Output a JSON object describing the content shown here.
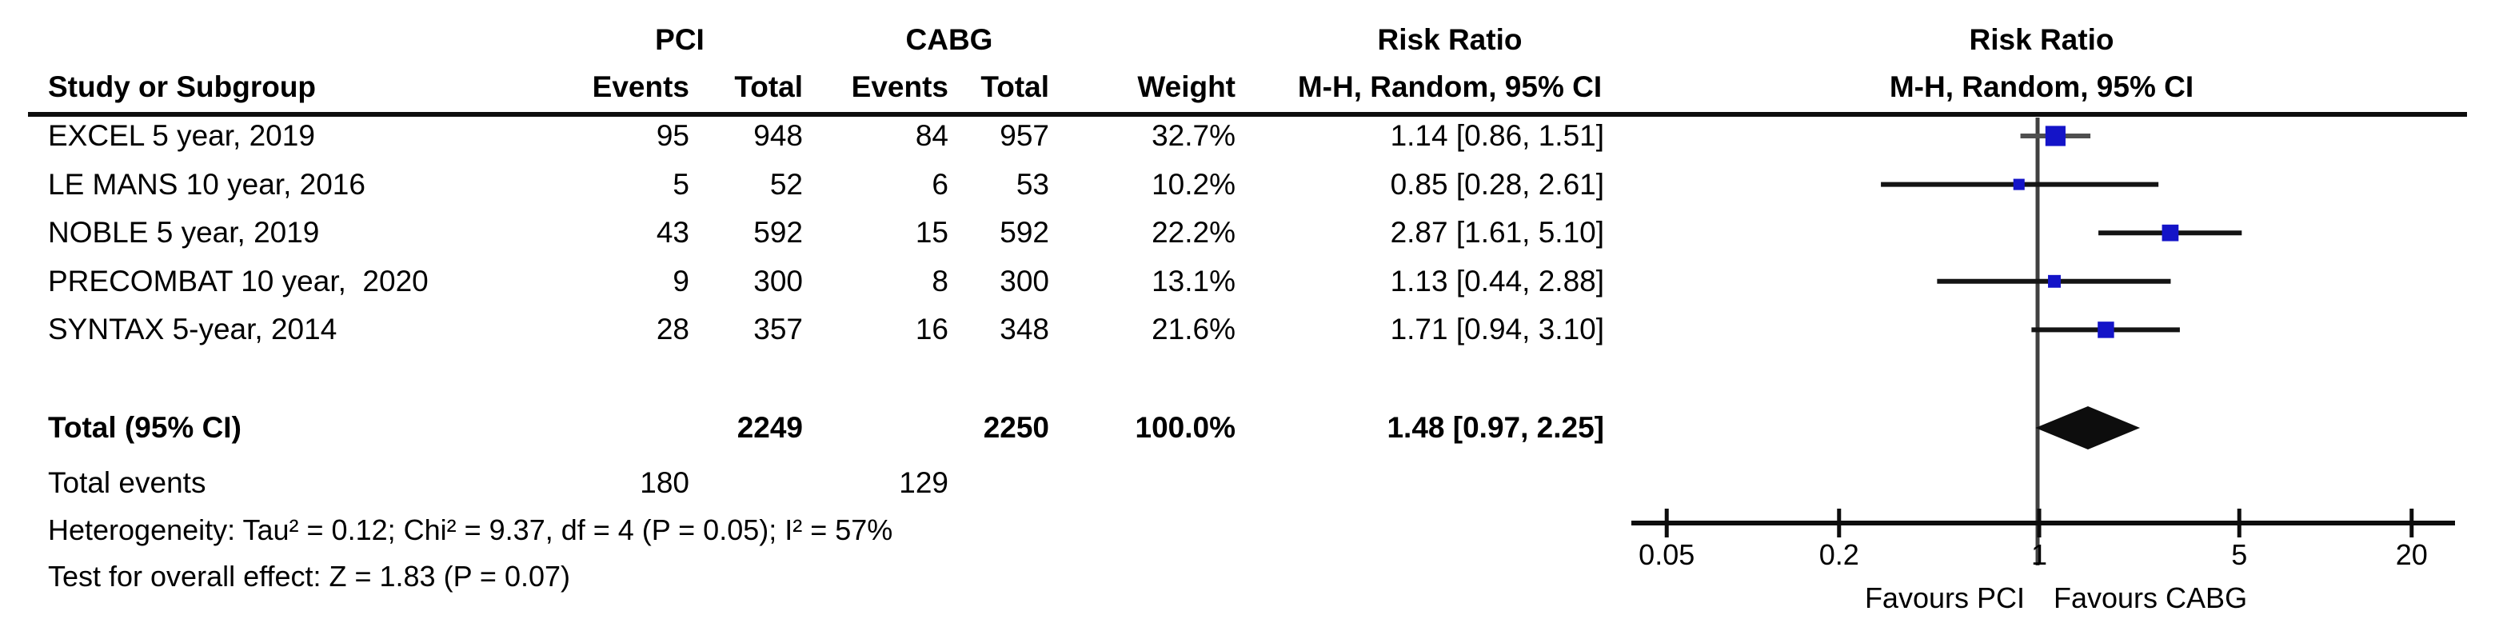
{
  "table": {
    "headers": {
      "group1": "PCI",
      "group2": "CABG",
      "study": "Study or Subgroup",
      "pci_events": "Events",
      "pci_total": "Total",
      "cabg_events": "Events",
      "cabg_total": "Total",
      "weight": "Weight",
      "rr_col_line1": "Risk Ratio",
      "rr_col_line2": "M-H, Random, 95% CI",
      "plot_col_line1": "Risk Ratio",
      "plot_col_line2": "M-H, Random, 95% CI"
    },
    "studies": [
      {
        "name": "EXCEL 5 year, 2019",
        "pci_events": "95",
        "pci_total": "948",
        "cabg_events": "84",
        "cabg_total": "957",
        "weight": "32.7%",
        "rr_text": "1.14 [0.86, 1.51]"
      },
      {
        "name": "LE MANS 10 year, 2016",
        "pci_events": "5",
        "pci_total": "52",
        "cabg_events": "6",
        "cabg_total": "53",
        "weight": "10.2%",
        "rr_text": "0.85 [0.28, 2.61]"
      },
      {
        "name": "NOBLE 5 year, 2019",
        "pci_events": "43",
        "pci_total": "592",
        "cabg_events": "15",
        "cabg_total": "592",
        "weight": "22.2%",
        "rr_text": "2.87 [1.61, 5.10]"
      },
      {
        "name": "PRECOMBAT 10 year,  2020",
        "pci_events": "9",
        "pci_total": "300",
        "cabg_events": "8",
        "cabg_total": "300",
        "weight": "13.1%",
        "rr_text": "1.13 [0.44, 2.88]"
      },
      {
        "name": "SYNTAX 5-year, 2014",
        "pci_events": "28",
        "pci_total": "357",
        "cabg_events": "16",
        "cabg_total": "348",
        "weight": "21.6%",
        "rr_text": "1.71 [0.94, 3.10]"
      }
    ],
    "total_row": {
      "label": "Total (95% CI)",
      "pci_total": "2249",
      "cabg_total": "2250",
      "weight": "100.0%",
      "rr_text": "1.48 [0.97, 2.25]"
    },
    "total_events": {
      "label": "Total events",
      "pci": "180",
      "cabg": "129"
    },
    "heterogeneity": "Heterogeneity: Tau² = 0.12; Chi² = 9.37, df = 4 (P = 0.05); I² = 57%",
    "overall_effect": "Test for overall effect: Z = 1.83 (P = 0.07)"
  },
  "chart_data": {
    "type": "forest",
    "x_scale": "log",
    "x_ticks": [
      0.05,
      0.2,
      1,
      5,
      20
    ],
    "x_tick_labels": [
      "0.05",
      "0.2",
      "1",
      "5",
      "20"
    ],
    "xlim": [
      0.04,
      25
    ],
    "null_line": 1,
    "effect_measure": "Risk Ratio, M-H, Random, 95% CI",
    "favours_left": "Favours PCI",
    "favours_right": "Favours CABG",
    "series": [
      {
        "name": "EXCEL 5 year, 2019",
        "rr": 1.14,
        "lo": 0.86,
        "hi": 1.51,
        "weight_pct": 32.7
      },
      {
        "name": "LE MANS 10 year, 2016",
        "rr": 0.85,
        "lo": 0.28,
        "hi": 2.61,
        "weight_pct": 10.2
      },
      {
        "name": "NOBLE 5 year, 2019",
        "rr": 2.87,
        "lo": 1.61,
        "hi": 5.1,
        "weight_pct": 22.2
      },
      {
        "name": "PRECOMBAT 10 year, 2020",
        "rr": 1.13,
        "lo": 0.44,
        "hi": 2.88,
        "weight_pct": 13.1
      },
      {
        "name": "SYNTAX 5-year, 2014",
        "rr": 1.71,
        "lo": 0.94,
        "hi": 3.1,
        "weight_pct": 21.6
      }
    ],
    "summary": {
      "label": "Total (95% CI)",
      "rr": 1.48,
      "lo": 0.97,
      "hi": 2.25
    }
  },
  "colors": {
    "marker_blue": "#1414c8",
    "diamond_black": "#0d0d0d",
    "axis_black": "#0d0d0d",
    "null_line_gray": "#404040",
    "ci_line_dark": "#141414",
    "ci_line_excel": "#4f4f4f",
    "text_black": "#000000",
    "background": "#ffffff"
  }
}
